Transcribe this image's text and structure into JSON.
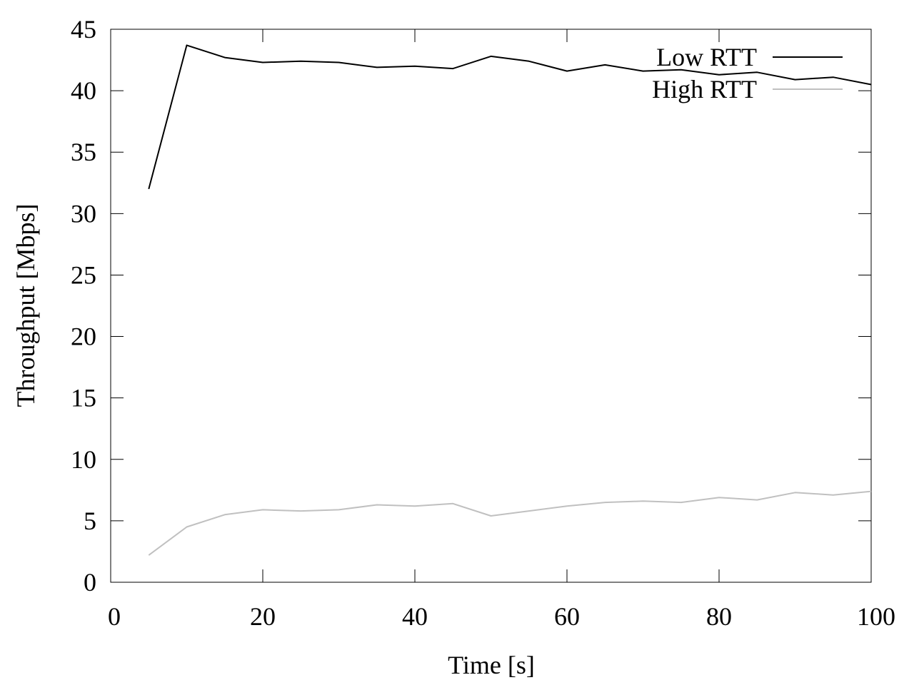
{
  "chart_data": {
    "type": "line",
    "title": "",
    "xlabel": "Time [s]",
    "ylabel": "Throughput [Mbps]",
    "xlim": [
      0,
      100
    ],
    "ylim": [
      0,
      45
    ],
    "xticks": [
      0,
      20,
      40,
      60,
      80,
      100
    ],
    "yticks": [
      0,
      5,
      10,
      15,
      20,
      25,
      30,
      35,
      40,
      45
    ],
    "grid": false,
    "legend_position": "top-right",
    "series": [
      {
        "name": "Low RTT",
        "color": "#000000",
        "x": [
          5,
          10,
          15,
          20,
          25,
          30,
          35,
          40,
          45,
          50,
          55,
          60,
          65,
          70,
          75,
          80,
          85,
          90,
          95,
          100
        ],
        "y": [
          32.0,
          43.7,
          42.7,
          42.3,
          42.4,
          42.3,
          41.9,
          42.0,
          41.8,
          42.8,
          42.4,
          41.6,
          42.1,
          41.6,
          41.7,
          41.3,
          41.5,
          40.9,
          41.1,
          40.5
        ]
      },
      {
        "name": "High RTT",
        "color": "#c0c0c0",
        "x": [
          5,
          10,
          15,
          20,
          25,
          30,
          35,
          40,
          45,
          50,
          55,
          60,
          65,
          70,
          75,
          80,
          85,
          90,
          95,
          100
        ],
        "y": [
          2.2,
          4.5,
          5.5,
          5.9,
          5.8,
          5.9,
          6.3,
          6.2,
          6.4,
          5.4,
          5.8,
          6.2,
          6.5,
          6.6,
          6.5,
          6.9,
          6.7,
          7.3,
          7.1,
          7.4
        ]
      }
    ]
  }
}
